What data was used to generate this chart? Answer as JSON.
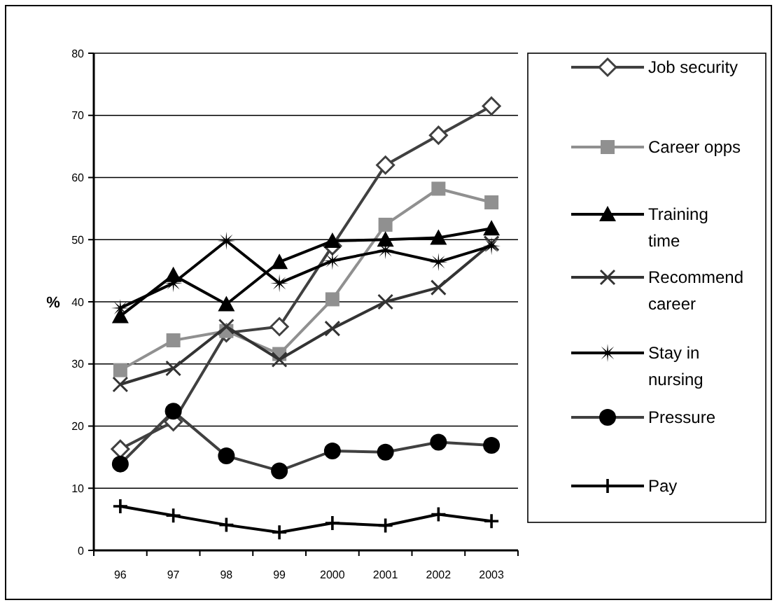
{
  "chart_data": {
    "type": "line",
    "ylabel": "%",
    "categories": [
      "96",
      "97",
      "98",
      "99",
      "2000",
      "2001",
      "2002",
      "2003"
    ],
    "ylim": [
      0,
      80
    ],
    "yticks": [
      0,
      10,
      20,
      30,
      40,
      50,
      60,
      70,
      80
    ],
    "grid": "y",
    "legend": "right",
    "series": [
      {
        "name": "Job security",
        "color": "#404040",
        "marker": "diamond",
        "values": [
          16.3,
          20.7,
          35,
          36,
          49,
          62,
          66.8,
          71.5
        ]
      },
      {
        "name": "Career opps",
        "color": "#909090",
        "marker": "square",
        "values": [
          29,
          33.8,
          35.3,
          31.6,
          40.4,
          52.4,
          58.2,
          56
        ]
      },
      {
        "name": "Training time",
        "color": "#000000",
        "marker": "triangle",
        "values": [
          37.7,
          44.3,
          39.6,
          46.4,
          49.8,
          50,
          50.3,
          51.8
        ]
      },
      {
        "name": "Recommend career",
        "color": "#333333",
        "marker": "x",
        "values": [
          26.7,
          29.3,
          36,
          30.7,
          35.7,
          40,
          42.3,
          49.4
        ]
      },
      {
        "name": "Stay in nursing",
        "color": "#000000",
        "marker": "star",
        "values": [
          39,
          43,
          49.8,
          43,
          46.6,
          48.3,
          46.4,
          49
        ]
      },
      {
        "name": "Pressure",
        "color": "#404040",
        "marker": "circle",
        "values": [
          13.9,
          22.4,
          15.2,
          12.8,
          16,
          15.8,
          17.4,
          16.9
        ]
      },
      {
        "name": "Pay",
        "color": "#000000",
        "marker": "cross",
        "values": [
          7.1,
          5.6,
          4.1,
          2.9,
          4.4,
          4,
          5.8,
          4.7
        ]
      }
    ]
  }
}
